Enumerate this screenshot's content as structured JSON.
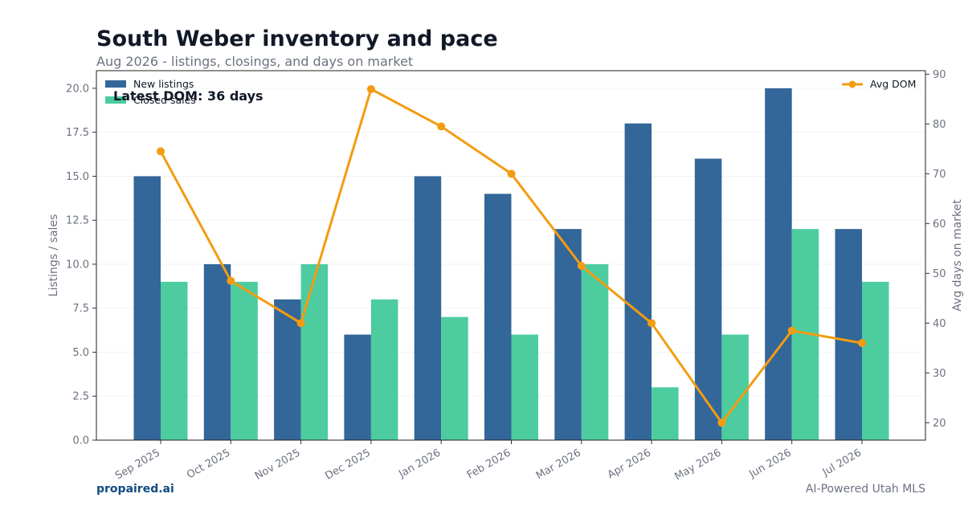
{
  "header": {
    "title": "South Weber inventory and pace",
    "subtitle": "Aug 2026 - listings, closings, and days on market"
  },
  "footer": {
    "brand": "propaired.ai",
    "tagline": "AI-Powered Utah MLS"
  },
  "colors": {
    "new_listings": "#336699",
    "closed_sales": "#4ccc9f",
    "avg_dom": "#f39c12"
  },
  "chart_data": {
    "type": "bar",
    "categories": [
      "Sep 2025",
      "Oct 2025",
      "Nov 2025",
      "Dec 2025",
      "Jan 2026",
      "Feb 2026",
      "Mar 2026",
      "Apr 2026",
      "May 2026",
      "Jun 2026",
      "Jul 2026"
    ],
    "series": [
      {
        "name": "New listings",
        "type": "bar",
        "axis": "left",
        "values": [
          15,
          10,
          8,
          6,
          15,
          14,
          12,
          18,
          16,
          20,
          12
        ]
      },
      {
        "name": "Closed sales",
        "type": "bar",
        "axis": "left",
        "values": [
          9,
          9,
          10,
          8,
          7,
          6,
          10,
          3,
          6,
          12,
          9
        ]
      },
      {
        "name": "Avg DOM",
        "type": "line",
        "axis": "right",
        "values": [
          74.5,
          48.5,
          40,
          87,
          79.5,
          70,
          51.5,
          40,
          20,
          38.5,
          36
        ]
      }
    ],
    "ylabel": "Listings / sales",
    "y2label": "Avg days on market",
    "ylim": [
      0,
      21
    ],
    "y2lim": [
      16.5,
      90.7
    ],
    "yticks": [
      "0.0",
      "2.5",
      "5.0",
      "7.5",
      "10.0",
      "12.5",
      "15.0",
      "17.5",
      "20.0"
    ],
    "y2ticks": [
      "20",
      "30",
      "40",
      "50",
      "60",
      "70",
      "80",
      "90"
    ],
    "annotation": "Latest DOM: 36 days",
    "grid": true,
    "legend_left": "top-left",
    "legend_right": "top-right"
  }
}
